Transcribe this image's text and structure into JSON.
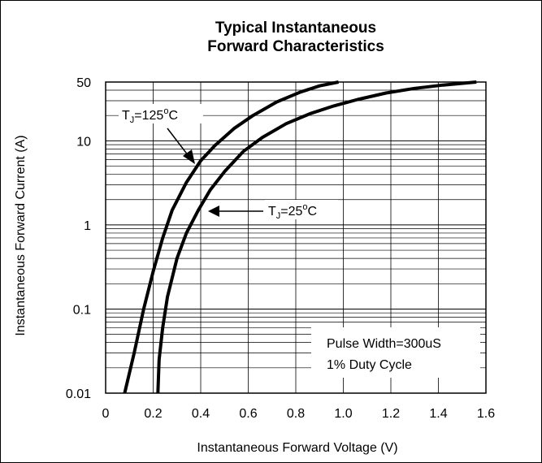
{
  "chart_data": {
    "type": "line",
    "title": [
      "Typical Instantaneous",
      "Forward Characteristics"
    ],
    "xlabel": "Instantaneous Forward Voltage (V)",
    "ylabel": "Instantaneous Forward Current (A)",
    "xlim": [
      0,
      1.6
    ],
    "ylim": [
      0.01,
      50
    ],
    "yscale": "log",
    "grid": true,
    "xticks": [
      "0",
      "0.2",
      "0.4",
      "0.6",
      "0.8",
      "1.0",
      "1.2",
      "1.4",
      "1.6"
    ],
    "yticks": [
      "0.01",
      "0.1",
      "1",
      "10",
      "50"
    ],
    "series": [
      {
        "name": "TJ=125°C",
        "label_main": "T",
        "label_sub": "J",
        "label_rest": "=125",
        "label_sup": "o",
        "label_unit": "C",
        "x": [
          0.08,
          0.12,
          0.16,
          0.2,
          0.24,
          0.28,
          0.34,
          0.4,
          0.46,
          0.54,
          0.62,
          0.72,
          0.82,
          0.9,
          0.98
        ],
        "y": [
          0.01,
          0.03,
          0.1,
          0.28,
          0.7,
          1.5,
          3.2,
          5.8,
          8.8,
          14,
          20,
          29,
          38,
          45,
          50
        ]
      },
      {
        "name": "TJ=25°C",
        "label_main": "T",
        "label_sub": "J",
        "label_rest": "=25",
        "label_sup": "o",
        "label_unit": "C",
        "x": [
          0.22,
          0.225,
          0.24,
          0.26,
          0.3,
          0.34,
          0.39,
          0.44,
          0.5,
          0.58,
          0.66,
          0.76,
          0.86,
          0.96,
          1.06,
          1.18,
          1.3,
          1.42,
          1.56
        ],
        "y": [
          0.01,
          0.025,
          0.06,
          0.14,
          0.4,
          0.8,
          1.5,
          2.6,
          4.3,
          7.5,
          11,
          16,
          21,
          26,
          31,
          37,
          42,
          46,
          50
        ]
      }
    ],
    "annotations": [
      "Pulse Width=300uS",
      "1% Duty Cycle"
    ]
  },
  "colors": {
    "line": "#000000",
    "grid": "#000000",
    "background": "#ffffff"
  }
}
